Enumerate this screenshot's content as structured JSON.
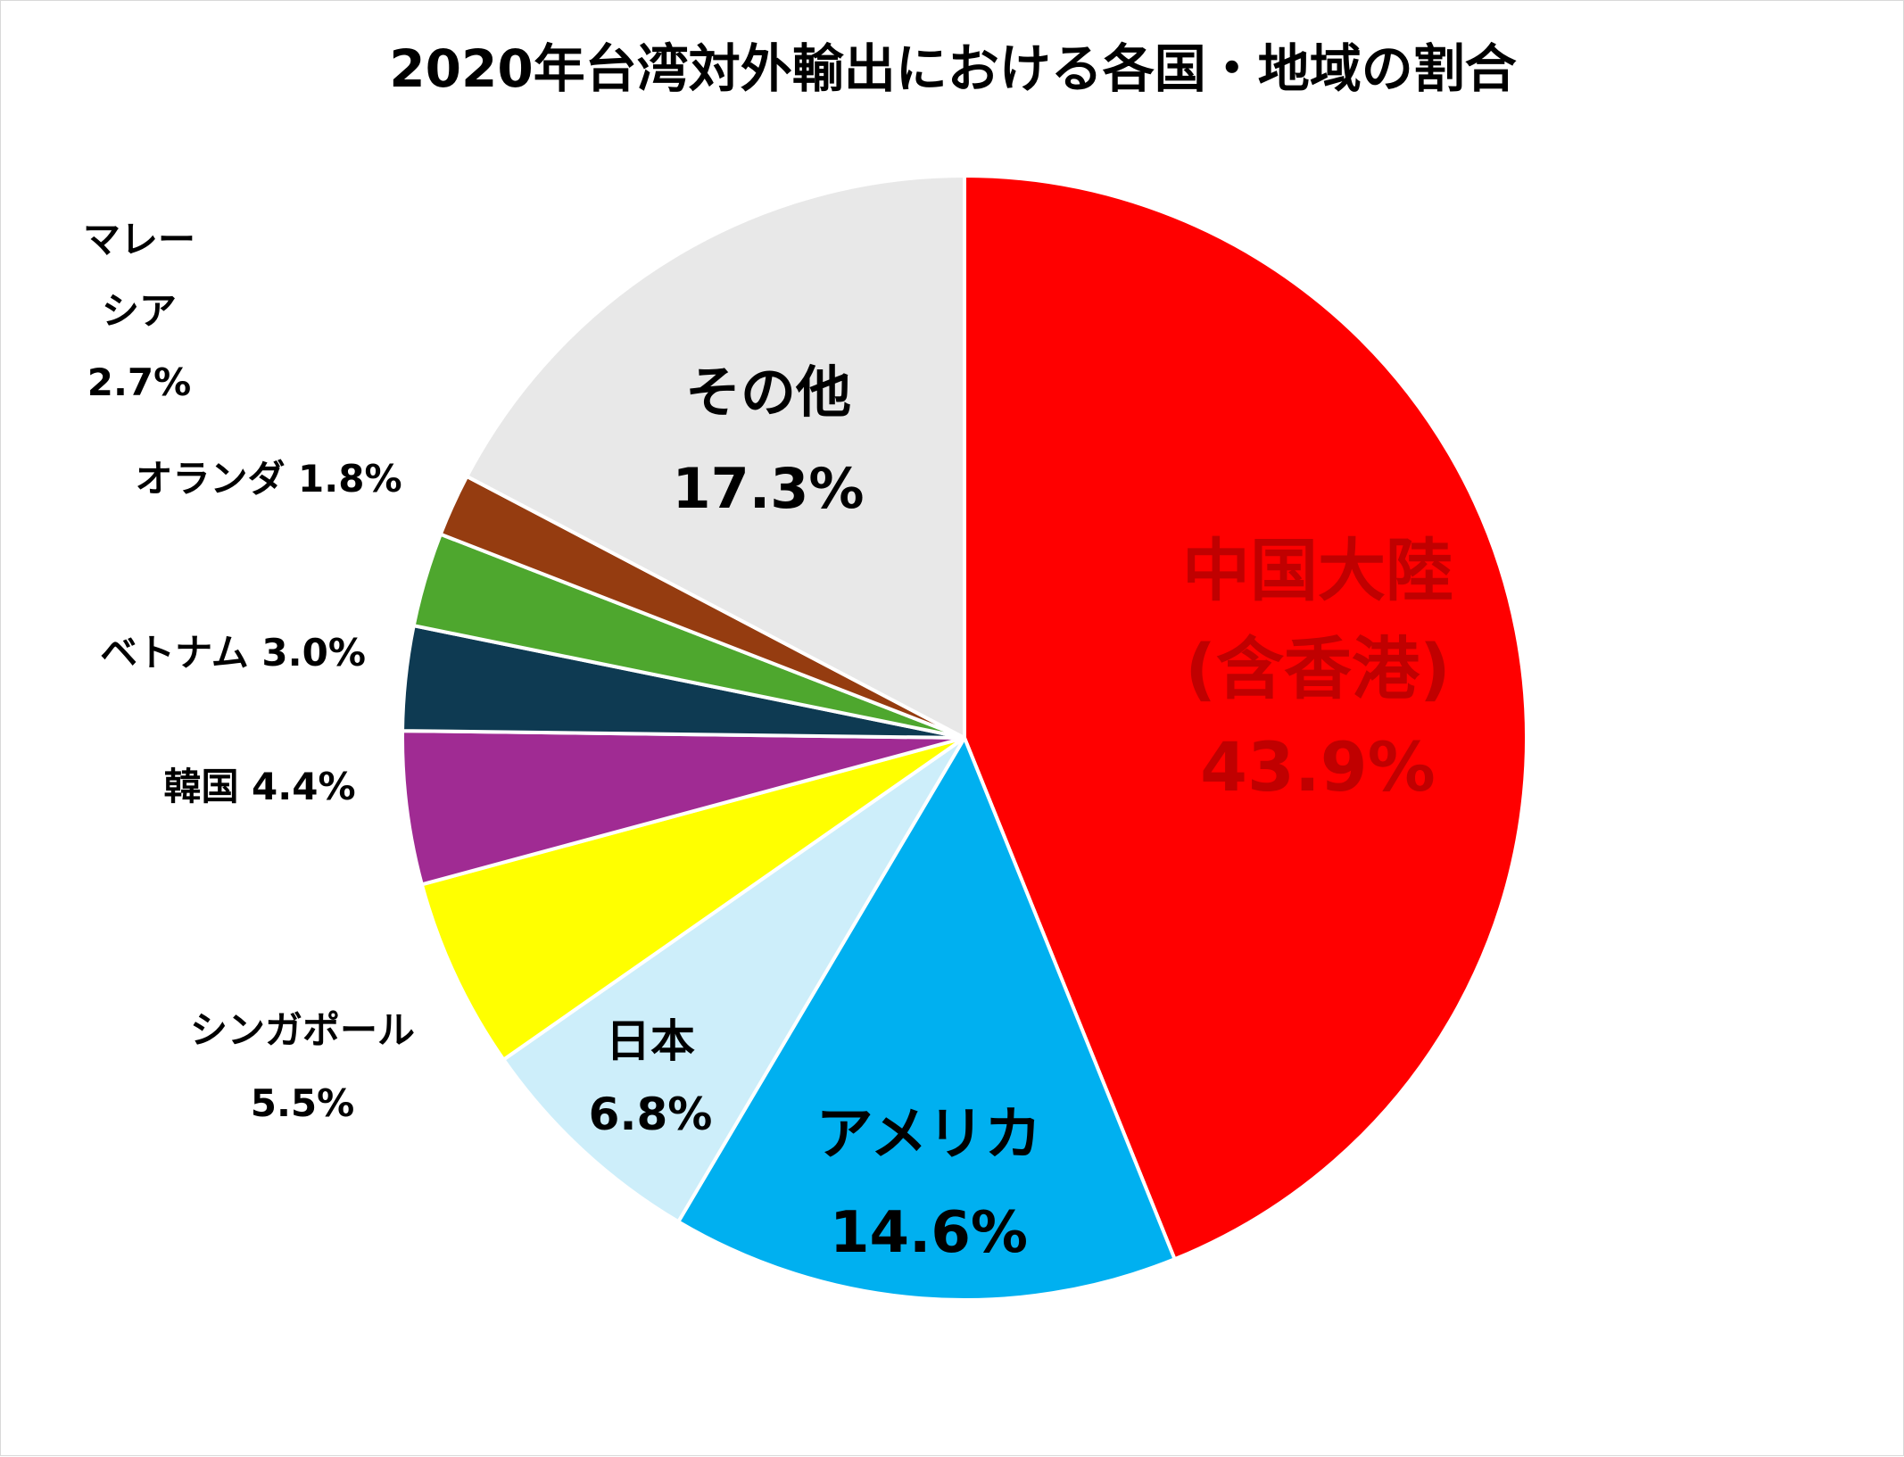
{
  "chart_data": {
    "type": "pie",
    "title": "2020年台湾対外輸出における各国・地域の割合",
    "legend": "none",
    "slices": [
      {
        "label_lines": [
          "中国大陸",
          "(含香港)",
          "43.9%"
        ],
        "name": "中国大陸(含香港)",
        "value": 43.9,
        "color": "#ff0000",
        "text_color": "#c00000"
      },
      {
        "label_lines": [
          "アメリカ",
          "14.6%"
        ],
        "name": "アメリカ",
        "value": 14.6,
        "color": "#00b0f0",
        "text_color": "#000000"
      },
      {
        "label_lines": [
          "日本",
          "6.8%"
        ],
        "name": "日本",
        "value": 6.8,
        "color": "#cdeefa",
        "text_color": "#000000"
      },
      {
        "label_lines": [
          "シンガポール",
          "5.5%"
        ],
        "name": "シンガポール",
        "value": 5.5,
        "color": "#ffff00",
        "text_color": "#000000"
      },
      {
        "label_lines": [
          "韓国 4.4%"
        ],
        "name": "韓国",
        "value": 4.4,
        "color": "#a02b93",
        "text_color": "#000000"
      },
      {
        "label_lines": [
          "ベトナム 3.0%"
        ],
        "name": "ベトナム",
        "value": 3.0,
        "color": "#0e3a52",
        "text_color": "#000000"
      },
      {
        "label_lines": [
          "マレー",
          "シア",
          "2.7%"
        ],
        "name": "マレーシア",
        "value": 2.7,
        "color": "#4ea72e",
        "text_color": "#000000"
      },
      {
        "label_lines": [
          "オランダ 1.8%"
        ],
        "name": "オランダ",
        "value": 1.8,
        "color": "#953c10",
        "text_color": "#000000"
      },
      {
        "label_lines": [
          "その他",
          "17.3%"
        ],
        "name": "その他",
        "value": 17.3,
        "color": "#e8e8e8",
        "text_color": "#000000"
      }
    ]
  }
}
